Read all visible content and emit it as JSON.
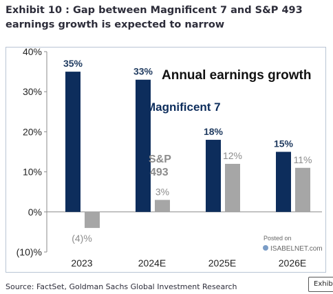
{
  "header": {
    "title": "Exhibit 10 : Gap between Magnificent 7 and S&P 493 earnings growth is expected to narrow"
  },
  "footer": {
    "source": "Source: FactSet, Goldman Sachs Global Investment Research",
    "exhibit_tab": "Exhibi"
  },
  "watermark": {
    "line1": "Posted on",
    "line2": "ISABELNET.com"
  },
  "colors": {
    "mag7": "#0d2d5c",
    "sp493": "#a6a6a6",
    "text_dark": "#1f3a5f",
    "sp_label": "#8c8c8c"
  },
  "chart_data": {
    "type": "bar",
    "title": "Annual earnings growth",
    "categories": [
      "2023",
      "2024E",
      "2025E",
      "2026E"
    ],
    "series": [
      {
        "name": "Magnificent 7",
        "values": [
          35,
          33,
          18,
          15
        ],
        "labels": [
          "35%",
          "33%",
          "18%",
          "15%"
        ]
      },
      {
        "name": "S&P 493",
        "values": [
          -4,
          3,
          12,
          11
        ],
        "labels": [
          "(4)%",
          "3%",
          "12%",
          "11%"
        ]
      }
    ],
    "ylim": [
      -10,
      40
    ],
    "yticks": [
      -10,
      0,
      10,
      20,
      30,
      40
    ],
    "ytick_labels": [
      "(10)%",
      "0%",
      "10%",
      "20%",
      "30%",
      "40%"
    ],
    "grid": false,
    "series_labels_in_plot": [
      "Magnificent 7",
      "S&P",
      "493"
    ]
  }
}
